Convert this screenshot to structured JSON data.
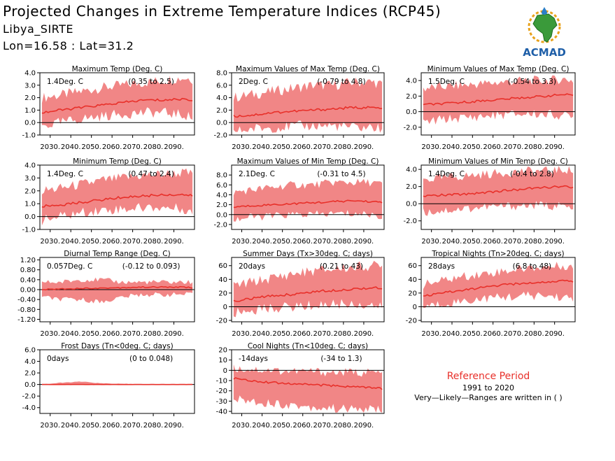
{
  "header": {
    "title": "Projected Changes in Extreme Temperature Indices (RCP45)",
    "location": "Libya_SIRTE",
    "coords": "Lon=16.58 : Lat=31.2"
  },
  "logo": {
    "text": "ACMAD",
    "icon": "africa-map-icon"
  },
  "reference": {
    "title": "Reference Period",
    "years": "1991 to 2020",
    "note": "Very—Likely—Ranges are written in ( )"
  },
  "colors": {
    "band": "#f08080",
    "line": "#e8302a",
    "zero": "#000000",
    "reference": "#e8302a"
  },
  "chart_data": [
    {
      "type": "area",
      "title": "Maximum Temp (Deg. C)",
      "change": "1.4Deg. C",
      "range": "(0.35 to 2.5)",
      "ylim": [
        -1.0,
        4.0
      ],
      "yticks": [
        -1.0,
        0.0,
        1.0,
        2.0,
        3.0,
        4.0
      ],
      "ytick_labels": [
        "-1.0",
        "0.0",
        "1.0",
        "2.0",
        "3.0",
        "4.0"
      ],
      "x_range": [
        2025,
        2100
      ],
      "xticks": [
        2030,
        2040,
        2050,
        2060,
        2070,
        2080,
        2090
      ],
      "xtick_labels": [
        "2030.",
        "2040.",
        "2050.",
        "2060.",
        "2070.",
        "2080.",
        "2090."
      ],
      "x": [
        2026,
        2035,
        2045,
        2055,
        2065,
        2075,
        2085,
        2095,
        2099
      ],
      "median": [
        0.8,
        1.0,
        1.2,
        1.4,
        1.6,
        1.8,
        1.8,
        1.9,
        1.8
      ],
      "low": [
        -0.3,
        0.0,
        0.3,
        0.5,
        0.7,
        0.8,
        0.8,
        0.6,
        0.4
      ],
      "high": [
        2.0,
        2.2,
        2.5,
        2.8,
        3.0,
        3.2,
        3.4,
        3.6,
        3.5
      ]
    },
    {
      "type": "area",
      "title": "Maximum Values of Max Temp (Deg. C)",
      "change": "2Deg. C",
      "range": "(-0.79 to 4.8)",
      "ylim": [
        -2.0,
        8.0
      ],
      "yticks": [
        -2.0,
        0.0,
        2.0,
        4.0,
        6.0,
        8.0
      ],
      "ytick_labels": [
        "-2.0",
        "0.0",
        "2.0",
        "4.0",
        "6.0",
        "8.0"
      ],
      "x_range": [
        2025,
        2100
      ],
      "xticks": [
        2030,
        2040,
        2050,
        2060,
        2070,
        2080,
        2090
      ],
      "xtick_labels": [
        "2030.",
        "2040.",
        "2050.",
        "2060.",
        "2070.",
        "2080.",
        "2090."
      ],
      "x": [
        2026,
        2035,
        2045,
        2055,
        2065,
        2075,
        2085,
        2095,
        2099
      ],
      "median": [
        1.0,
        1.2,
        1.6,
        1.8,
        2.0,
        2.2,
        2.4,
        2.4,
        2.2
      ],
      "low": [
        -1.5,
        -1.0,
        -0.8,
        -0.6,
        -0.5,
        -0.5,
        -0.8,
        -0.8,
        -1.0
      ],
      "high": [
        4.0,
        4.5,
        5.0,
        5.5,
        6.0,
        6.0,
        6.5,
        6.5,
        6.0
      ]
    },
    {
      "type": "area",
      "title": "Minimum Values of Max Temp (Deg. C)",
      "change": "1.5Deg. C",
      "range": "(-0.54 to 3.3)",
      "ylim": [
        -3.0,
        5.0
      ],
      "yticks": [
        -2.0,
        0.0,
        2.0,
        4.0
      ],
      "ytick_labels": [
        "-2.0",
        "0.0",
        "2.0",
        "4.0"
      ],
      "x_range": [
        2025,
        2100
      ],
      "xticks": [
        2030,
        2040,
        2050,
        2060,
        2070,
        2080,
        2090
      ],
      "xtick_labels": [
        "2030.",
        "2040.",
        "2050.",
        "2060.",
        "2070.",
        "2080.",
        "2090."
      ],
      "x": [
        2026,
        2035,
        2045,
        2055,
        2065,
        2075,
        2085,
        2095,
        2099
      ],
      "median": [
        0.9,
        1.0,
        1.2,
        1.4,
        1.6,
        1.8,
        2.0,
        2.2,
        2.0
      ],
      "low": [
        -1.5,
        -1.0,
        -0.8,
        -0.6,
        -0.4,
        -0.3,
        -0.3,
        -0.5,
        -0.8
      ],
      "high": [
        3.0,
        3.2,
        3.4,
        3.6,
        3.8,
        4.0,
        4.0,
        4.2,
        4.0
      ]
    },
    {
      "type": "area",
      "title": "Minimum Temp (Deg. C)",
      "change": "1.4Deg. C",
      "range": "(0.47 to 2.4)",
      "ylim": [
        -1.0,
        4.0
      ],
      "yticks": [
        -1.0,
        0.0,
        1.0,
        2.0,
        3.0,
        4.0
      ],
      "ytick_labels": [
        "-1.0",
        "0.0",
        "1.0",
        "2.0",
        "3.0",
        "4.0"
      ],
      "x_range": [
        2025,
        2100
      ],
      "xticks": [
        2030,
        2040,
        2050,
        2060,
        2070,
        2080,
        2090
      ],
      "xtick_labels": [
        "2030.",
        "2040.",
        "2050.",
        "2060.",
        "2070.",
        "2080.",
        "2090."
      ],
      "x": [
        2026,
        2035,
        2045,
        2055,
        2065,
        2075,
        2085,
        2095,
        2099
      ],
      "median": [
        0.8,
        0.9,
        1.1,
        1.3,
        1.5,
        1.6,
        1.7,
        1.7,
        1.6
      ],
      "low": [
        -0.3,
        0.0,
        0.3,
        0.5,
        0.6,
        0.7,
        0.7,
        0.6,
        0.3
      ],
      "high": [
        2.0,
        2.2,
        2.5,
        2.8,
        3.0,
        3.2,
        3.3,
        3.4,
        3.3
      ]
    },
    {
      "type": "area",
      "title": "Maximum Values of Min Temp (Deg. C)",
      "change": "2.1Deg. C",
      "range": "(-0.31 to 4.5)",
      "ylim": [
        -3.0,
        10.0
      ],
      "yticks": [
        -2.0,
        0.0,
        2.0,
        4.0,
        6.0,
        8.0
      ],
      "ytick_labels": [
        "-2.0",
        "0.0",
        "2.0",
        "4.0",
        "6.0",
        "8.0"
      ],
      "x_range": [
        2025,
        2100
      ],
      "xticks": [
        2030,
        2040,
        2050,
        2060,
        2070,
        2080,
        2090
      ],
      "xtick_labels": [
        "2030.",
        "2040.",
        "2050.",
        "2060.",
        "2070.",
        "2080.",
        "2090."
      ],
      "x": [
        2026,
        2035,
        2045,
        2055,
        2065,
        2075,
        2085,
        2095,
        2099
      ],
      "median": [
        1.5,
        1.8,
        2.0,
        2.2,
        2.4,
        2.6,
        2.8,
        2.6,
        2.4
      ],
      "low": [
        -1.0,
        -0.5,
        -0.3,
        0.0,
        0.0,
        0.2,
        0.2,
        0.0,
        -0.5
      ],
      "high": [
        4.5,
        5.0,
        5.5,
        6.0,
        6.0,
        6.5,
        6.5,
        6.5,
        6.0
      ]
    },
    {
      "type": "area",
      "title": "Minimum Values of Min Temp (Deg. C)",
      "change": "1.4Deg. C",
      "range": "(-0.4 to 2.8)",
      "ylim": [
        -3.0,
        4.5
      ],
      "yticks": [
        -2.0,
        0.0,
        2.0,
        4.0
      ],
      "ytick_labels": [
        "-2.0",
        "0.0",
        "2.0",
        "4.0"
      ],
      "x_range": [
        2025,
        2100
      ],
      "xticks": [
        2030,
        2040,
        2050,
        2060,
        2070,
        2080,
        2090
      ],
      "xtick_labels": [
        "2030.",
        "2040.",
        "2050.",
        "2060.",
        "2070.",
        "2080.",
        "2090."
      ],
      "x": [
        2026,
        2035,
        2045,
        2055,
        2065,
        2075,
        2085,
        2095,
        2099
      ],
      "median": [
        0.9,
        1.0,
        1.1,
        1.3,
        1.5,
        1.7,
        1.9,
        2.0,
        1.8
      ],
      "low": [
        -1.0,
        -0.8,
        -0.6,
        -0.4,
        -0.3,
        -0.2,
        -0.2,
        -0.3,
        -0.8
      ],
      "high": [
        2.8,
        3.0,
        3.2,
        3.4,
        3.6,
        3.8,
        3.8,
        4.0,
        3.8
      ]
    },
    {
      "type": "area",
      "title": "Diurnal Temp Range (Deg. C)",
      "change": "0.057Deg. C",
      "range": "(-0.12 to 0.093)",
      "ylim": [
        -1.3,
        1.3
      ],
      "yticks": [
        -1.2,
        -0.8,
        -0.4,
        0.0,
        0.4,
        0.8,
        1.2
      ],
      "ytick_labels": [
        "-1.20",
        "-0.80",
        "-0.40",
        "0.00",
        "0.40",
        "0.80",
        "1.20"
      ],
      "x_range": [
        2025,
        2100
      ],
      "xticks": [
        2030,
        2040,
        2050,
        2060,
        2070,
        2080,
        2090
      ],
      "xtick_labels": [
        "2030.",
        "2040.",
        "2050.",
        "2060.",
        "2070.",
        "2080.",
        "2090."
      ],
      "x": [
        2026,
        2035,
        2045,
        2055,
        2065,
        2075,
        2085,
        2095,
        2099
      ],
      "median": [
        0.0,
        0.03,
        0.05,
        0.06,
        0.08,
        0.1,
        0.1,
        0.1,
        0.08
      ],
      "low": [
        -0.3,
        -0.4,
        -0.4,
        -0.5,
        -0.3,
        -0.2,
        -0.2,
        -0.2,
        -0.2
      ],
      "high": [
        0.3,
        0.3,
        0.4,
        0.4,
        0.3,
        0.3,
        0.3,
        0.3,
        0.3
      ]
    },
    {
      "type": "area",
      "title": "Summer Days (Tx>30deg. C; days)",
      "change": "20days",
      "range": "(0.21 to 43)",
      "ylim": [
        -22,
        72
      ],
      "yticks": [
        -20,
        0,
        20,
        40,
        60
      ],
      "ytick_labels": [
        "-20",
        "0",
        "20",
        "40",
        "60"
      ],
      "x_range": [
        2025,
        2100
      ],
      "xticks": [
        2030,
        2040,
        2050,
        2060,
        2070,
        2080,
        2090
      ],
      "xtick_labels": [
        "2030.",
        "2040.",
        "2050.",
        "2060.",
        "2070.",
        "2080.",
        "2090."
      ],
      "x": [
        2026,
        2035,
        2045,
        2055,
        2065,
        2075,
        2085,
        2095,
        2099
      ],
      "median": [
        8,
        12,
        16,
        18,
        22,
        24,
        26,
        28,
        26
      ],
      "low": [
        -10,
        -5,
        -2,
        0,
        2,
        4,
        4,
        2,
        -2
      ],
      "high": [
        30,
        36,
        42,
        48,
        52,
        55,
        58,
        60,
        58
      ]
    },
    {
      "type": "area",
      "title": "Tropical Nights (Tn>20deg. C; days)",
      "change": "28days",
      "range": "(6.8 to 48)",
      "ylim": [
        -22,
        72
      ],
      "yticks": [
        -20,
        0,
        20,
        40,
        60
      ],
      "ytick_labels": [
        "-20",
        "0",
        "20",
        "40",
        "60"
      ],
      "x_range": [
        2025,
        2100
      ],
      "xticks": [
        2030,
        2040,
        2050,
        2060,
        2070,
        2080,
        2090
      ],
      "xtick_labels": [
        "2030.",
        "2040.",
        "2050.",
        "2060.",
        "2070.",
        "2080.",
        "2090."
      ],
      "x": [
        2026,
        2035,
        2045,
        2055,
        2065,
        2075,
        2085,
        2095,
        2099
      ],
      "median": [
        15,
        20,
        24,
        28,
        32,
        34,
        36,
        38,
        36
      ],
      "low": [
        0,
        4,
        8,
        12,
        14,
        16,
        16,
        14,
        8
      ],
      "high": [
        32,
        38,
        44,
        48,
        52,
        56,
        58,
        60,
        58
      ]
    },
    {
      "type": "area",
      "title": "Frost Days (Tn<0deg. C; days)",
      "change": "0days",
      "range": "(0 to 0.048)",
      "ylim": [
        -5,
        6
      ],
      "yticks": [
        -4.0,
        -2.0,
        0.0,
        2.0,
        4.0,
        6.0
      ],
      "ytick_labels": [
        "-4.0",
        "-2.0",
        "0.0",
        "2.0",
        "4.0",
        "6.0"
      ],
      "x_range": [
        2025,
        2100
      ],
      "xticks": [
        2030,
        2040,
        2050,
        2060,
        2070,
        2080,
        2090
      ],
      "xtick_labels": [
        "2030.",
        "2040.",
        "2050.",
        "2060.",
        "2070.",
        "2080.",
        "2090."
      ],
      "x": [
        2026,
        2035,
        2045,
        2055,
        2065,
        2075,
        2085,
        2095,
        2099
      ],
      "median": [
        0,
        0,
        0,
        0,
        0,
        0,
        0,
        0,
        0
      ],
      "low": [
        0,
        0,
        0,
        0,
        0,
        0,
        0,
        0,
        0
      ],
      "high": [
        0,
        0.3,
        0.5,
        0.2,
        0.1,
        0,
        0,
        0,
        0
      ]
    },
    {
      "type": "area",
      "title": "Cool Nights (Tn<10deg. C; days)",
      "change": "-14days",
      "range": "(-34 to 1.3)",
      "ylim": [
        -42,
        20
      ],
      "yticks": [
        -40,
        -30,
        -20,
        -10,
        0,
        10,
        20
      ],
      "ytick_labels": [
        "-40",
        "-30",
        "-20",
        "-10",
        "0",
        "10",
        "20"
      ],
      "x_range": [
        2025,
        2100
      ],
      "xticks": [
        2030,
        2040,
        2050,
        2060,
        2070,
        2080,
        2090
      ],
      "xtick_labels": [
        "2030.",
        "2040.",
        "2050.",
        "2060.",
        "2070.",
        "2080.",
        "2090."
      ],
      "x": [
        2026,
        2035,
        2045,
        2055,
        2065,
        2075,
        2085,
        2095,
        2099
      ],
      "median": [
        -8,
        -10,
        -12,
        -13,
        -14,
        -15,
        -16,
        -17,
        -18
      ],
      "low": [
        -28,
        -30,
        -32,
        -34,
        -36,
        -37,
        -38,
        -38,
        -38
      ],
      "high": [
        2,
        1,
        0,
        -1,
        -1,
        -2,
        -2,
        -2,
        -3
      ]
    }
  ]
}
